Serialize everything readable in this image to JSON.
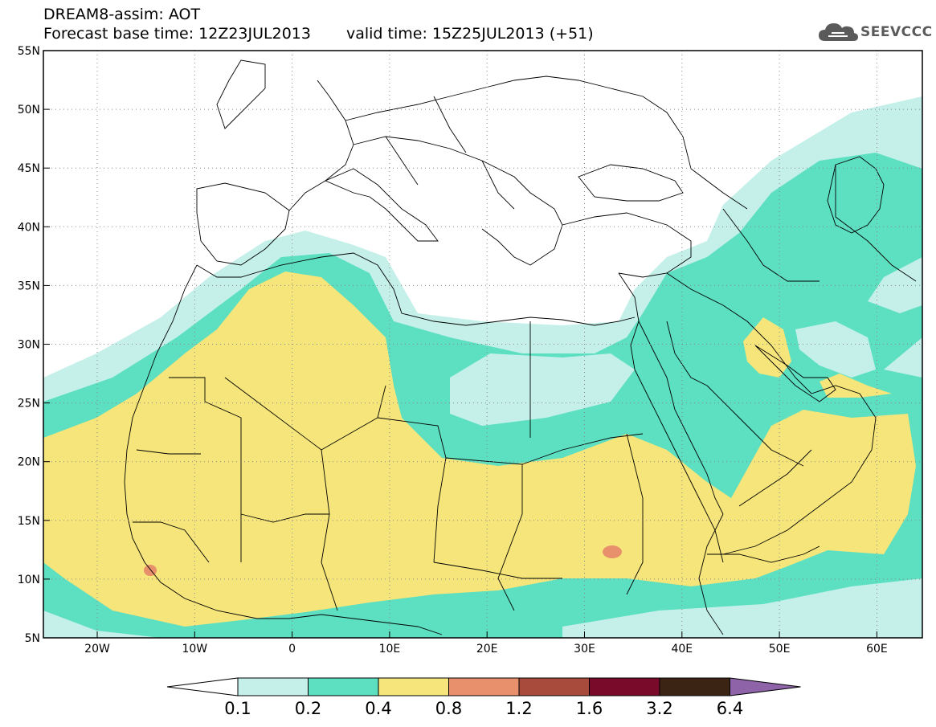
{
  "header": {
    "line1": "DREAM8-assim: AOT",
    "base_label": "Forecast base time: 12Z23JUL2013",
    "valid_label": "valid time: 15Z25JUL2013 (+51)"
  },
  "logo": {
    "text": "SEEVCCC",
    "icon": "cloud-icon"
  },
  "map": {
    "lon_labels": [
      "20W",
      "10W",
      "0",
      "10E",
      "20E",
      "30E",
      "40E",
      "50E",
      "60E"
    ],
    "lat_labels": [
      "55N",
      "50N",
      "45N",
      "40N",
      "35N",
      "30N",
      "25N",
      "20N",
      "15N",
      "10N",
      "5N"
    ]
  },
  "colorbar": {
    "labels": [
      "0.1",
      "0.2",
      "0.4",
      "0.8",
      "1.2",
      "1.6",
      "3.2",
      "6.4"
    ],
    "colors": [
      "#ffffff",
      "#c4f0e9",
      "#5ddfc1",
      "#f5e57a",
      "#e8906c",
      "#a84a3c",
      "#7a0a2a",
      "#3b2414",
      "#8e63a8"
    ]
  }
}
